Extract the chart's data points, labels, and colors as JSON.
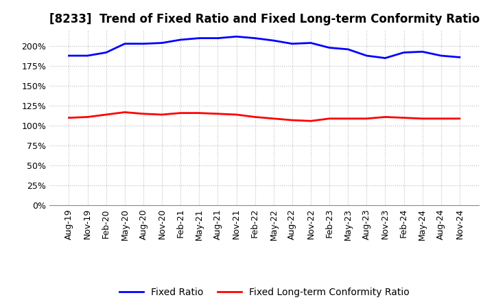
{
  "title": "[8233]  Trend of Fixed Ratio and Fixed Long-term Conformity Ratio",
  "x_labels": [
    "Aug-19",
    "Nov-19",
    "Feb-20",
    "May-20",
    "Aug-20",
    "Nov-20",
    "Feb-21",
    "May-21",
    "Aug-21",
    "Nov-21",
    "Feb-22",
    "May-22",
    "Aug-22",
    "Nov-22",
    "Feb-23",
    "May-23",
    "Aug-23",
    "Nov-23",
    "Feb-24",
    "May-24",
    "Aug-24",
    "Nov-24"
  ],
  "fixed_ratio": [
    188,
    188,
    192,
    203,
    203,
    204,
    208,
    210,
    210,
    212,
    210,
    207,
    203,
    204,
    198,
    196,
    188,
    185,
    192,
    193,
    188,
    186
  ],
  "fixed_ltc_ratio": [
    110,
    111,
    114,
    117,
    115,
    114,
    116,
    116,
    115,
    114,
    111,
    109,
    107,
    106,
    109,
    109,
    109,
    111,
    110,
    109,
    109,
    109
  ],
  "fixed_ratio_color": "#0000FF",
  "fixed_ltc_color": "#FF0000",
  "ylim": [
    0,
    220
  ],
  "yticks": [
    0,
    25,
    50,
    75,
    100,
    125,
    150,
    175,
    200
  ],
  "background_color": "#FFFFFF",
  "grid_color": "#BBBBBB",
  "legend_fixed_ratio": "Fixed Ratio",
  "legend_fixed_ltc": "Fixed Long-term Conformity Ratio",
  "title_fontsize": 12,
  "axis_fontsize": 9,
  "legend_fontsize": 10,
  "line_width": 2.0
}
